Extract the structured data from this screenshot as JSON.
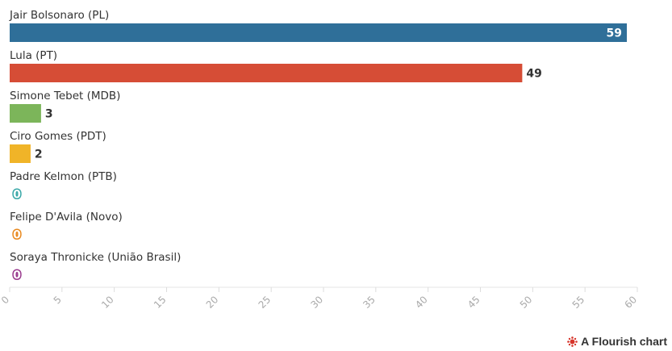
{
  "chart_data": {
    "type": "bar",
    "orientation": "horizontal",
    "categories": [
      "Jair Bolsonaro (PL)",
      "Lula (PT)",
      "Simone Tebet (MDB)",
      "Ciro Gomes (PDT)",
      "Padre Kelmon (PTB)",
      "Felipe D'Avila (Novo)",
      "Soraya Thronicke (União Brasil)"
    ],
    "values": [
      59,
      49,
      3,
      2,
      0,
      0,
      0
    ],
    "value_labels": [
      "59",
      "49",
      "3",
      "2",
      "0",
      "0",
      "0"
    ],
    "colors": [
      "#2f6f99",
      "#d64d36",
      "#7cb55a",
      "#f0b428",
      "#3aa8a8",
      "#e98a20",
      "#9a3c8e"
    ],
    "xlim": [
      0,
      60
    ],
    "xticks": [
      "0",
      "5",
      "10",
      "15",
      "20",
      "25",
      "30",
      "35",
      "40",
      "45",
      "50",
      "55",
      "60"
    ],
    "title": "",
    "xlabel": "",
    "ylabel": ""
  },
  "footer": {
    "credit": "A Flourish chart",
    "icon": "flourish-logo-icon"
  }
}
